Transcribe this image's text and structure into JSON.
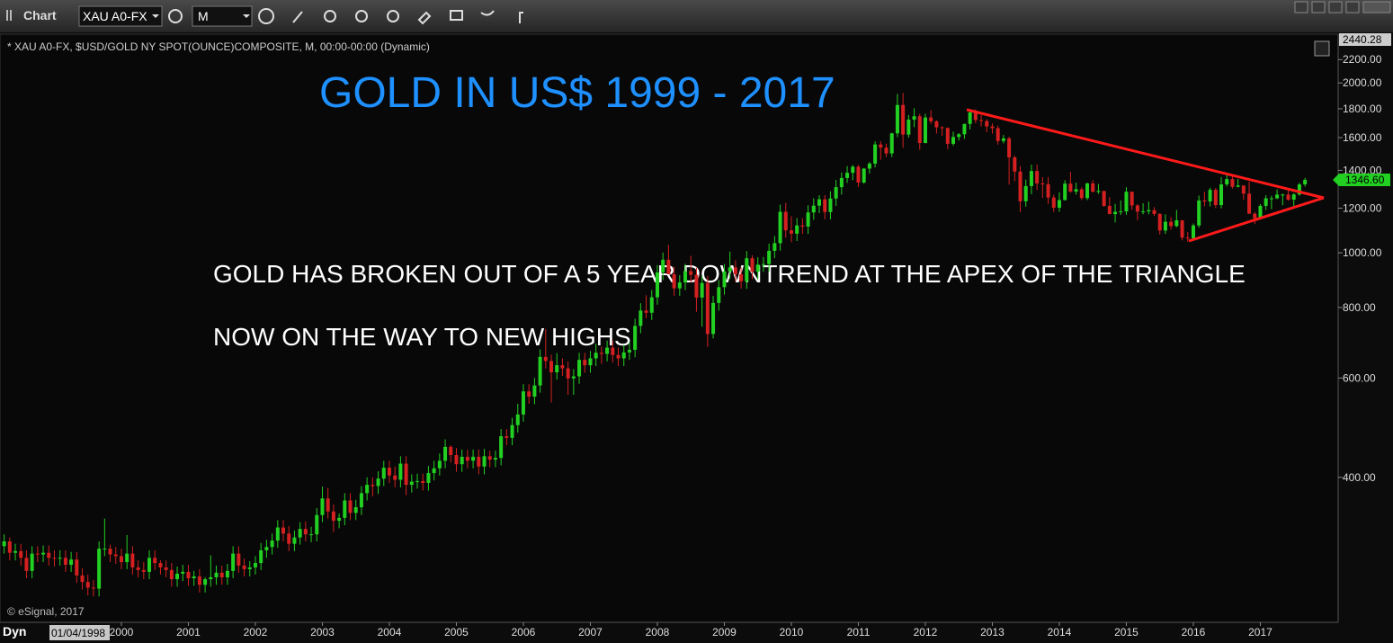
{
  "toolbar": {
    "title": "Chart",
    "symbol": "XAU A0-FX",
    "interval": "M"
  },
  "status": "Dyn",
  "chart_data": {
    "type": "candlestick",
    "title": "GOLD IN US$ 1999  -  2017",
    "subtitle": "* XAU A0-FX, $USD/GOLD NY SPOT(OUNCE)COMPOSITE, M, 00:00-00:00 (Dynamic)",
    "annotations": [
      "GOLD HAS BROKEN OUT OF A 5 YEAR DOWNTREND AT THE APEX OF THE TRIANGLE",
      "NOW ON THE WAY TO NEW HIGHS"
    ],
    "watermark": "© eSignal, 2017",
    "cursor_date": "01/04/1998",
    "log_scale": true,
    "grid": false,
    "up_color": "#22d022",
    "down_color": "#d42020",
    "ylim": [
      223,
      2440.28
    ],
    "yticks": [
      {
        "value": 400,
        "label": "400.00"
      },
      {
        "value": 600,
        "label": "600.00"
      },
      {
        "value": 800,
        "label": "800.00"
      },
      {
        "value": 1000,
        "label": "1000.00"
      },
      {
        "value": 1200,
        "label": "1200.00"
      },
      {
        "value": 1400,
        "label": "1400.00"
      },
      {
        "value": 1600,
        "label": "1600.00"
      },
      {
        "value": 1800,
        "label": "1800.00"
      },
      {
        "value": 2000,
        "label": "2000.00"
      },
      {
        "value": 2200,
        "label": "2200.00"
      }
    ],
    "last_price": {
      "value": 1346.6,
      "label": "1346.60"
    },
    "categories": [
      null,
      null,
      null,
      null,
      null,
      null,
      null,
      null,
      null,
      null,
      null,
      null,
      null,
      null,
      null,
      null,
      null,
      null,
      null,
      null,
      null,
      "2000",
      null,
      null,
      null,
      null,
      null,
      null,
      null,
      null,
      null,
      null,
      null,
      "2001",
      null,
      null,
      null,
      null,
      null,
      null,
      null,
      null,
      null,
      null,
      null,
      "2002",
      null,
      null,
      null,
      null,
      null,
      null,
      null,
      null,
      null,
      null,
      null,
      "2003",
      null,
      null,
      null,
      null,
      null,
      null,
      null,
      null,
      null,
      null,
      null,
      "2004",
      null,
      null,
      null,
      null,
      null,
      null,
      null,
      null,
      null,
      null,
      null,
      "2005",
      null,
      null,
      null,
      null,
      null,
      null,
      null,
      null,
      null,
      null,
      null,
      "2006",
      null,
      null,
      null,
      null,
      null,
      null,
      null,
      null,
      null,
      null,
      null,
      "2007",
      null,
      null,
      null,
      null,
      null,
      null,
      null,
      null,
      null,
      null,
      null,
      "2008",
      null,
      null,
      null,
      null,
      null,
      null,
      null,
      null,
      null,
      null,
      null,
      "2009",
      null,
      null,
      null,
      null,
      null,
      null,
      null,
      null,
      null,
      null,
      null,
      "2010",
      null,
      null,
      null,
      null,
      null,
      null,
      null,
      null,
      null,
      null,
      null,
      "2011",
      null,
      null,
      null,
      null,
      null,
      null,
      null,
      null,
      null,
      null,
      null,
      "2012",
      null,
      null,
      null,
      null,
      null,
      null,
      null,
      null,
      null,
      null,
      null,
      "2013",
      null,
      null,
      null,
      null,
      null,
      null,
      null,
      null,
      null,
      null,
      null,
      "2014",
      null,
      null,
      null,
      null,
      null,
      null,
      null,
      null,
      null,
      null,
      null,
      "2015",
      null,
      null,
      null,
      null,
      null,
      null,
      null,
      null,
      null,
      null,
      null,
      "2016",
      null,
      null,
      null,
      null,
      null,
      null,
      null,
      null,
      null,
      null,
      null,
      "2017",
      null,
      null,
      null,
      null,
      null,
      null,
      null,
      null
    ],
    "open": [
      302,
      308,
      294,
      296,
      288,
      273,
      293,
      292,
      294,
      288,
      287,
      288,
      280,
      286,
      268,
      261,
      255,
      254,
      299,
      299,
      292,
      290,
      283,
      293,
      277,
      274,
      272,
      288,
      282,
      277,
      274,
      264,
      270,
      272,
      265,
      267,
      258,
      264,
      266,
      271,
      266,
      273,
      293,
      279,
      275,
      277,
      282,
      297,
      301,
      309,
      326,
      318,
      305,
      313,
      324,
      317,
      317,
      343,
      367,
      348,
      335,
      339,
      364,
      346,
      354,
      375,
      388,
      386,
      398,
      416,
      403,
      396,
      423,
      388,
      393,
      394,
      391,
      407,
      415,
      428,
      453,
      438,
      422,
      435,
      428,
      435,
      418,
      436,
      430,
      433,
      473,
      470,
      495,
      517,
      568,
      556,
      582,
      654,
      643,
      614,
      632,
      624,
      599,
      604,
      646,
      632,
      650,
      665,
      662,
      679,
      659,
      650,
      666,
      673,
      742,
      790,
      783,
      834,
      923,
      972,
      916,
      865,
      886,
      928,
      914,
      833,
      884,
      718,
      815,
      869,
      927,
      942,
      916,
      890,
      978,
      926,
      953,
      955,
      1008,
      1040,
      1182,
      1096,
      1081,
      1118,
      1113,
      1179,
      1212,
      1244,
      1181,
      1248,
      1307,
      1357,
      1386,
      1421,
      1332,
      1410,
      1439,
      1556,
      1536,
      1500,
      1628,
      1828,
      1620,
      1722,
      1746,
      1565,
      1737,
      1710,
      1669,
      1664,
      1560,
      1604,
      1622,
      1692,
      1773,
      1719,
      1712,
      1675,
      1663,
      1578,
      1595,
      1476,
      1393,
      1234,
      1313,
      1396,
      1327,
      1323,
      1253,
      1202,
      1240,
      1326,
      1284,
      1296,
      1250,
      1327,
      1282,
      1287,
      1211,
      1171,
      1182,
      1184,
      1283,
      1213,
      1183,
      1184,
      1190,
      1172,
      1095,
      1135,
      1115,
      1142,
      1064,
      1061,
      1118,
      1238,
      1233,
      1293,
      1215,
      1322,
      1351,
      1309,
      1316,
      1273,
      1173,
      1151,
      1211,
      1249,
      1249,
      1268,
      1268,
      1242,
      1269,
      1322
    ],
    "high": [
      317,
      313,
      305,
      305,
      297,
      302,
      302,
      303,
      303,
      297,
      297,
      297,
      295,
      295,
      276,
      269,
      263,
      308,
      338,
      304,
      301,
      299,
      316,
      302,
      285,
      283,
      297,
      297,
      285,
      285,
      282,
      278,
      280,
      280,
      273,
      275,
      266,
      291,
      279,
      279,
      281,
      302,
      302,
      287,
      284,
      290,
      306,
      310,
      318,
      336,
      336,
      328,
      322,
      333,
      334,
      327,
      353,
      385,
      383,
      358,
      345,
      375,
      375,
      365,
      386,
      400,
      400,
      410,
      428,
      428,
      418,
      436,
      436,
      405,
      406,
      406,
      419,
      428,
      441,
      467,
      456,
      451,
      448,
      448,
      448,
      448,
      449,
      446,
      446,
      487,
      487,
      510,
      540,
      585,
      585,
      600,
      674,
      732,
      660,
      664,
      650,
      642,
      622,
      665,
      665,
      670,
      690,
      682,
      699,
      699,
      679,
      686,
      693,
      764,
      814,
      841,
      859,
      951,
      1001,
      1033,
      945,
      913,
      956,
      988,
      941,
      910,
      910,
      839,
      895,
      955,
      1005,
      970,
      943,
      1007,
      990,
      982,
      983,
      1038,
      1071,
      1217,
      1226,
      1161,
      1152,
      1152,
      1214,
      1249,
      1265,
      1265,
      1285,
      1346,
      1388,
      1424,
      1431,
      1431,
      1413,
      1448,
      1576,
      1577,
      1561,
      1632,
      1912,
      1920,
      1755,
      1804,
      1764,
      1764,
      1790,
      1718,
      1676,
      1668,
      1640,
      1630,
      1693,
      1790,
      1796,
      1754,
      1725,
      1696,
      1681,
      1617,
      1605,
      1487,
      1424,
      1348,
      1433,
      1434,
      1361,
      1362,
      1267,
      1280,
      1345,
      1392,
      1331,
      1306,
      1332,
      1345,
      1324,
      1287,
      1255,
      1221,
      1238,
      1307,
      1284,
      1219,
      1224,
      1232,
      1205,
      1175,
      1170,
      1157,
      1191,
      1142,
      1088,
      1127,
      1263,
      1283,
      1304,
      1303,
      1362,
      1375,
      1367,
      1352,
      1314,
      1337,
      1180,
      1220,
      1264,
      1262,
      1295,
      1273,
      1296,
      1275,
      1331,
      1357
    ],
    "low": [
      293,
      285,
      285,
      279,
      265,
      265,
      283,
      283,
      279,
      278,
      279,
      272,
      272,
      260,
      253,
      247,
      246,
      246,
      290,
      283,
      281,
      275,
      275,
      269,
      266,
      264,
      264,
      274,
      269,
      266,
      256,
      256,
      262,
      257,
      257,
      250,
      250,
      256,
      258,
      258,
      258,
      265,
      271,
      267,
      267,
      269,
      274,
      288,
      292,
      300,
      308,
      296,
      296,
      304,
      308,
      307,
      308,
      333,
      338,
      320,
      325,
      329,
      336,
      336,
      343,
      364,
      370,
      374,
      386,
      391,
      384,
      384,
      372,
      376,
      382,
      379,
      379,
      395,
      403,
      415,
      425,
      409,
      409,
      415,
      415,
      405,
      405,
      417,
      417,
      420,
      456,
      456,
      480,
      502,
      540,
      539,
      565,
      624,
      543,
      596,
      605,
      560,
      560,
      586,
      613,
      613,
      630,
      636,
      642,
      639,
      630,
      630,
      646,
      653,
      720,
      766,
      760,
      809,
      895,
      916,
      839,
      839,
      859,
      886,
      786,
      740,
      681,
      705,
      790,
      843,
      899,
      890,
      864,
      863,
      898,
      898,
      925,
      926,
      978,
      1009,
      1063,
      1044,
      1049,
      1080,
      1080,
      1144,
      1176,
      1146,
      1146,
      1211,
      1268,
      1330,
      1345,
      1308,
      1325,
      1382,
      1417,
      1462,
      1478,
      1478,
      1603,
      1535,
      1600,
      1670,
      1523,
      1564,
      1692,
      1627,
      1611,
      1527,
      1548,
      1581,
      1592,
      1655,
      1697,
      1674,
      1636,
      1626,
      1555,
      1563,
      1321,
      1339,
      1180,
      1207,
      1270,
      1292,
      1251,
      1221,
      1182,
      1182,
      1238,
      1277,
      1268,
      1240,
      1240,
      1282,
      1272,
      1206,
      1183,
      1132,
      1167,
      1168,
      1191,
      1142,
      1170,
      1170,
      1162,
      1077,
      1080,
      1099,
      1110,
      1052,
      1046,
      1062,
      1108,
      1209,
      1208,
      1200,
      1199,
      1311,
      1300,
      1306,
      1241,
      1171,
      1124,
      1146,
      1191,
      1195,
      1245,
      1214,
      1237,
      1205,
      1262,
      1310
    ],
    "close": [
      308,
      294,
      296,
      288,
      273,
      293,
      292,
      294,
      288,
      287,
      288,
      280,
      286,
      268,
      261,
      255,
      254,
      299,
      299,
      292,
      290,
      283,
      293,
      277,
      274,
      272,
      288,
      282,
      277,
      274,
      264,
      270,
      272,
      265,
      267,
      258,
      264,
      266,
      271,
      266,
      273,
      293,
      279,
      275,
      277,
      282,
      297,
      301,
      309,
      326,
      318,
      305,
      313,
      324,
      317,
      317,
      343,
      367,
      348,
      335,
      339,
      364,
      346,
      354,
      375,
      388,
      386,
      398,
      416,
      403,
      396,
      423,
      388,
      393,
      394,
      391,
      407,
      415,
      428,
      453,
      438,
      422,
      435,
      428,
      435,
      418,
      436,
      430,
      433,
      473,
      470,
      495,
      517,
      568,
      556,
      582,
      654,
      643,
      614,
      632,
      624,
      599,
      604,
      646,
      632,
      650,
      665,
      662,
      679,
      659,
      650,
      666,
      673,
      742,
      790,
      783,
      834,
      923,
      972,
      916,
      865,
      886,
      928,
      914,
      833,
      884,
      718,
      815,
      869,
      927,
      942,
      916,
      890,
      978,
      926,
      953,
      955,
      1008,
      1040,
      1182,
      1096,
      1081,
      1118,
      1113,
      1179,
      1212,
      1244,
      1181,
      1248,
      1307,
      1357,
      1386,
      1421,
      1332,
      1410,
      1439,
      1556,
      1536,
      1500,
      1628,
      1828,
      1620,
      1722,
      1746,
      1565,
      1737,
      1710,
      1669,
      1664,
      1560,
      1604,
      1622,
      1692,
      1773,
      1719,
      1712,
      1675,
      1663,
      1578,
      1595,
      1476,
      1393,
      1234,
      1313,
      1396,
      1327,
      1323,
      1253,
      1202,
      1240,
      1326,
      1284,
      1296,
      1250,
      1327,
      1282,
      1287,
      1211,
      1171,
      1182,
      1184,
      1283,
      1213,
      1183,
      1184,
      1190,
      1172,
      1095,
      1135,
      1115,
      1142,
      1064,
      1061,
      1118,
      1238,
      1233,
      1293,
      1215,
      1322,
      1351,
      1309,
      1316,
      1273,
      1173,
      1151,
      1211,
      1249,
      1249,
      1268,
      1268,
      1242,
      1269,
      1322,
      1346.6
    ]
  }
}
